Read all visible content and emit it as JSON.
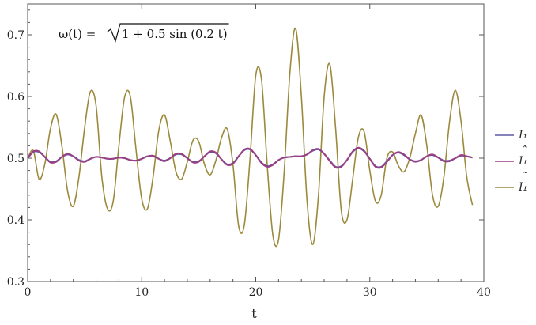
{
  "chart_data": {
    "type": "line",
    "title": "",
    "xlabel": "t",
    "ylabel": "",
    "xlim": [
      0,
      40
    ],
    "ylim": [
      0.3,
      0.75
    ],
    "xticks": [
      0,
      10,
      20,
      30,
      40
    ],
    "xtick_labels": [
      "0",
      "10",
      "20",
      "30",
      "40"
    ],
    "yticks": [
      0.3,
      0.4,
      0.5,
      0.6,
      0.7
    ],
    "ytick_labels": [
      "0.3",
      "0.4",
      "0.5",
      "0.6",
      "0.7"
    ],
    "grid": false,
    "legend_position": "right",
    "annotation": {
      "lhs": "ω(t) = ",
      "radicand": "1 + 0.5 sin (0.2 t)"
    },
    "series": [
      {
        "name": "I1",
        "legend_label": "I₁",
        "legend_accent": "",
        "color": "#5e5aa6",
        "x": [
          0,
          0.5,
          1,
          1.5,
          2,
          2.5,
          3,
          3.5,
          4,
          4.5,
          5,
          5.5,
          6,
          6.5,
          7,
          7.5,
          8,
          8.5,
          9,
          9.5,
          10,
          10.5,
          11,
          11.5,
          12,
          12.5,
          13,
          13.5,
          14,
          14.5,
          15,
          15.5,
          16,
          16.5,
          17,
          17.5,
          18,
          18.5,
          19,
          19.5,
          20,
          20.5,
          21,
          21.5,
          22,
          22.5,
          23,
          23.5,
          24,
          24.5,
          25,
          25.5,
          26,
          26.5,
          27,
          27.5,
          28,
          28.5,
          29,
          29.5,
          30,
          30.5,
          31,
          31.5,
          32,
          32.5,
          33,
          33.5,
          34,
          34.5,
          35,
          35.5,
          36,
          36.5,
          37,
          37.5,
          38,
          38.5,
          39
        ],
        "y": [
          0.5,
          0.51,
          0.51,
          0.502,
          0.494,
          0.495,
          0.502,
          0.506,
          0.503,
          0.497,
          0.495,
          0.499,
          0.502,
          0.501,
          0.499,
          0.499,
          0.501,
          0.5,
          0.497,
          0.496,
          0.499,
          0.503,
          0.503,
          0.499,
          0.496,
          0.5,
          0.506,
          0.506,
          0.5,
          0.494,
          0.495,
          0.503,
          0.51,
          0.508,
          0.498,
          0.49,
          0.492,
          0.503,
          0.513,
          0.514,
          0.505,
          0.493,
          0.487,
          0.49,
          0.497,
          0.501,
          0.502,
          0.503,
          0.503,
          0.506,
          0.512,
          0.514,
          0.507,
          0.496,
          0.486,
          0.487,
          0.497,
          0.51,
          0.516,
          0.511,
          0.499,
          0.487,
          0.486,
          0.495,
          0.505,
          0.509,
          0.505,
          0.498,
          0.495,
          0.497,
          0.503,
          0.505,
          0.501,
          0.496,
          0.496,
          0.5,
          0.504,
          0.503,
          0.501
        ]
      },
      {
        "name": "I1 hat",
        "legend_label": "I₁",
        "legend_accent": "ˆ",
        "color": "#9a3f83",
        "x": [
          0,
          0.5,
          1,
          1.5,
          2,
          2.5,
          3,
          3.5,
          4,
          4.5,
          5,
          5.5,
          6,
          6.5,
          7,
          7.5,
          8,
          8.5,
          9,
          9.5,
          10,
          10.5,
          11,
          11.5,
          12,
          12.5,
          13,
          13.5,
          14,
          14.5,
          15,
          15.5,
          16,
          16.5,
          17,
          17.5,
          18,
          18.5,
          19,
          19.5,
          20,
          20.5,
          21,
          21.5,
          22,
          22.5,
          23,
          23.5,
          24,
          24.5,
          25,
          25.5,
          26,
          26.5,
          27,
          27.5,
          28,
          28.5,
          29,
          29.5,
          30,
          30.5,
          31,
          31.5,
          32,
          32.5,
          33,
          33.5,
          34,
          34.5,
          35,
          35.5,
          36,
          36.5,
          37,
          37.5,
          38,
          38.5,
          39
        ],
        "y": [
          0.5,
          0.511,
          0.511,
          0.502,
          0.493,
          0.494,
          0.502,
          0.507,
          0.503,
          0.496,
          0.494,
          0.499,
          0.502,
          0.501,
          0.499,
          0.499,
          0.501,
          0.5,
          0.497,
          0.496,
          0.499,
          0.503,
          0.504,
          0.499,
          0.495,
          0.5,
          0.507,
          0.507,
          0.5,
          0.493,
          0.494,
          0.503,
          0.511,
          0.509,
          0.498,
          0.489,
          0.491,
          0.503,
          0.514,
          0.515,
          0.505,
          0.492,
          0.486,
          0.489,
          0.497,
          0.501,
          0.502,
          0.503,
          0.503,
          0.506,
          0.513,
          0.515,
          0.507,
          0.495,
          0.485,
          0.486,
          0.497,
          0.511,
          0.517,
          0.512,
          0.499,
          0.486,
          0.485,
          0.494,
          0.505,
          0.51,
          0.506,
          0.498,
          0.494,
          0.497,
          0.503,
          0.506,
          0.501,
          0.495,
          0.495,
          0.5,
          0.505,
          0.503,
          0.501
        ]
      },
      {
        "name": "I1 tilde",
        "legend_label": "I₁",
        "legend_accent": "˜",
        "color": "#9c8a3c",
        "x": [
          0,
          0.5,
          1,
          1.5,
          2,
          2.5,
          3,
          3.5,
          4,
          4.5,
          5,
          5.5,
          6,
          6.5,
          7,
          7.5,
          8,
          8.5,
          9,
          9.5,
          10,
          10.5,
          11,
          11.5,
          12,
          12.5,
          13,
          13.5,
          14,
          14.5,
          15,
          15.5,
          16,
          16.5,
          17,
          17.5,
          18,
          18.5,
          19,
          19.5,
          20,
          20.5,
          21,
          21.5,
          22,
          22.5,
          23,
          23.5,
          24,
          24.5,
          25,
          25.5,
          26,
          26.5,
          27,
          27.5,
          28,
          28.5,
          29,
          29.5,
          30,
          30.5,
          31,
          31.5,
          32,
          32.5,
          33,
          33.5,
          34,
          34.5,
          35,
          35.5,
          36,
          36.5,
          37,
          37.5,
          38,
          38.5,
          39
        ],
        "y": [
          0.5,
          0.512,
          0.466,
          0.49,
          0.548,
          0.571,
          0.52,
          0.447,
          0.422,
          0.47,
          0.55,
          0.608,
          0.585,
          0.47,
          0.418,
          0.43,
          0.52,
          0.599,
          0.6,
          0.514,
          0.434,
          0.418,
          0.47,
          0.545,
          0.57,
          0.528,
          0.478,
          0.466,
          0.494,
          0.529,
          0.527,
          0.49,
          0.473,
          0.496,
          0.533,
          0.547,
          0.49,
          0.39,
          0.392,
          0.5,
          0.634,
          0.628,
          0.49,
          0.375,
          0.368,
          0.48,
          0.64,
          0.71,
          0.6,
          0.43,
          0.36,
          0.44,
          0.6,
          0.652,
          0.549,
          0.415,
          0.4,
          0.466,
          0.534,
          0.543,
          0.48,
          0.43,
          0.44,
          0.5,
          0.51,
          0.488,
          0.478,
          0.5,
          0.54,
          0.57,
          0.52,
          0.44,
          0.422,
          0.47,
          0.56,
          0.61,
          0.56,
          0.47,
          0.424
        ]
      }
    ]
  }
}
